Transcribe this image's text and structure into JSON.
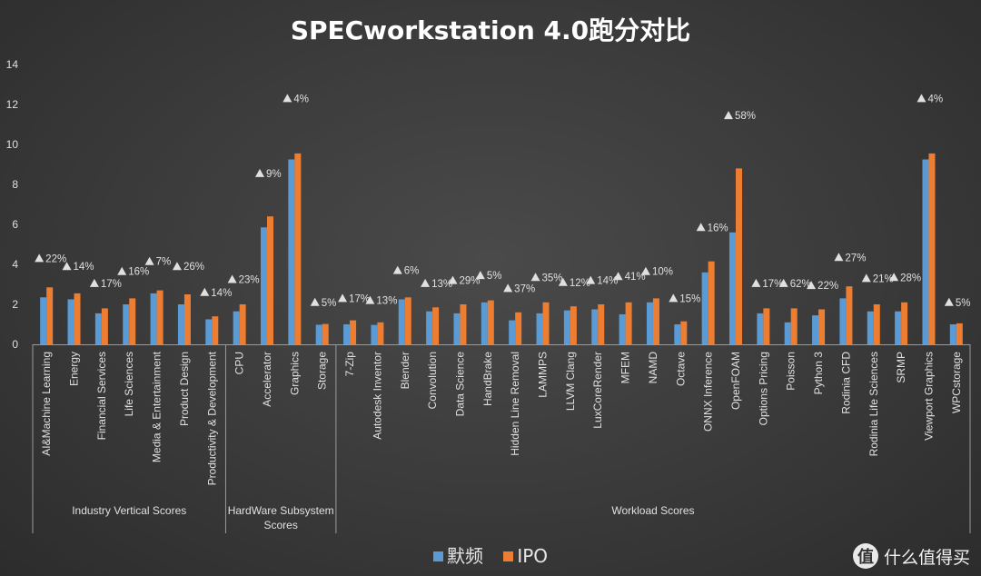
{
  "chart_data": {
    "type": "bar",
    "title": "SPECworkstation 4.0跑分对比",
    "xlabel": "",
    "ylabel": "",
    "ylim": [
      0,
      14
    ],
    "yticks": [
      "0",
      "2",
      "4",
      "6",
      "8",
      "10",
      "12",
      "14"
    ],
    "grid": false,
    "legend_position": "bottom",
    "series": [
      {
        "name": "默频",
        "color": "#5b9bd5",
        "values": [
          2.35,
          2.25,
          1.55,
          2.0,
          2.55,
          2.0,
          1.25,
          1.65,
          5.85,
          9.25,
          0.98,
          1.0,
          0.97,
          2.25,
          1.65,
          1.55,
          2.1,
          1.2,
          1.55,
          1.7,
          1.75,
          1.5,
          2.1,
          1.0,
          3.6,
          5.6,
          1.55,
          1.1,
          1.45,
          2.3,
          1.65,
          1.65,
          9.25,
          1.0
        ]
      },
      {
        "name": "IPO",
        "color": "#ed7d31",
        "values": [
          2.85,
          2.55,
          1.8,
          2.3,
          2.7,
          2.5,
          1.4,
          2.0,
          6.4,
          9.55,
          1.02,
          1.2,
          1.1,
          2.35,
          1.85,
          2.0,
          2.2,
          1.6,
          2.1,
          1.9,
          2.0,
          2.1,
          2.3,
          1.15,
          4.15,
          8.8,
          1.8,
          1.8,
          1.75,
          2.9,
          2.0,
          2.1,
          9.55,
          1.05
        ]
      }
    ],
    "categories": [
      "AI&Machine Learning",
      "Energy",
      "Financial Services",
      "Life Sciences",
      "Media & Entertainment",
      "Product Design",
      "Productivity & Development",
      "CPU",
      "Accelerator",
      "Graphics",
      "Storage",
      "7-Zip",
      "Autodesk Inventor",
      "Blender",
      "Convolution",
      "Data Science",
      "HandBrake",
      "Hidden Line Removal",
      "LAMMPS",
      "LLVM Clang",
      "LuxCoreRender",
      "MFEM",
      "NAMD",
      "Octave",
      "ONNX Inference",
      "OpenFOAM",
      "Options Pricing",
      "Poisson",
      "Python 3",
      "Rodinia CFD",
      "Rodinia Life Sciences",
      "SRMP",
      "Viewport Graphics",
      "WPCstorage"
    ],
    "annotations": [
      "22%",
      "14%",
      "17%",
      "16%",
      "7%",
      "26%",
      "14%",
      "23%",
      "9%",
      "4%",
      "5%",
      "17%",
      "13%",
      "6%",
      "13%",
      "29%",
      "5%",
      "37%",
      "35%",
      "12%",
      "14%",
      "41%",
      "10%",
      "15%",
      "16%",
      "58%",
      "17%",
      "62%",
      "22%",
      "27%",
      "21%",
      "28%",
      "4%",
      "5%"
    ],
    "annotation_values": [
      4.3,
      3.9,
      3.05,
      3.65,
      4.15,
      3.9,
      2.6,
      3.25,
      8.55,
      12.3,
      2.1,
      2.3,
      2.2,
      3.7,
      3.05,
      3.2,
      3.45,
      2.8,
      3.35,
      3.1,
      3.2,
      3.4,
      3.65,
      2.3,
      5.85,
      11.45,
      3.05,
      3.05,
      2.95,
      4.35,
      3.3,
      3.35,
      12.3,
      2.1
    ],
    "groups": [
      {
        "label": "Industry Vertical Scores",
        "start": 0,
        "end": 6
      },
      {
        "label": "HardWare Subsystem Scores",
        "start": 7,
        "end": 10
      },
      {
        "label": "Workload Scores",
        "start": 11,
        "end": 33
      }
    ]
  },
  "watermark": {
    "icon": "值",
    "text": "什么值得买"
  }
}
